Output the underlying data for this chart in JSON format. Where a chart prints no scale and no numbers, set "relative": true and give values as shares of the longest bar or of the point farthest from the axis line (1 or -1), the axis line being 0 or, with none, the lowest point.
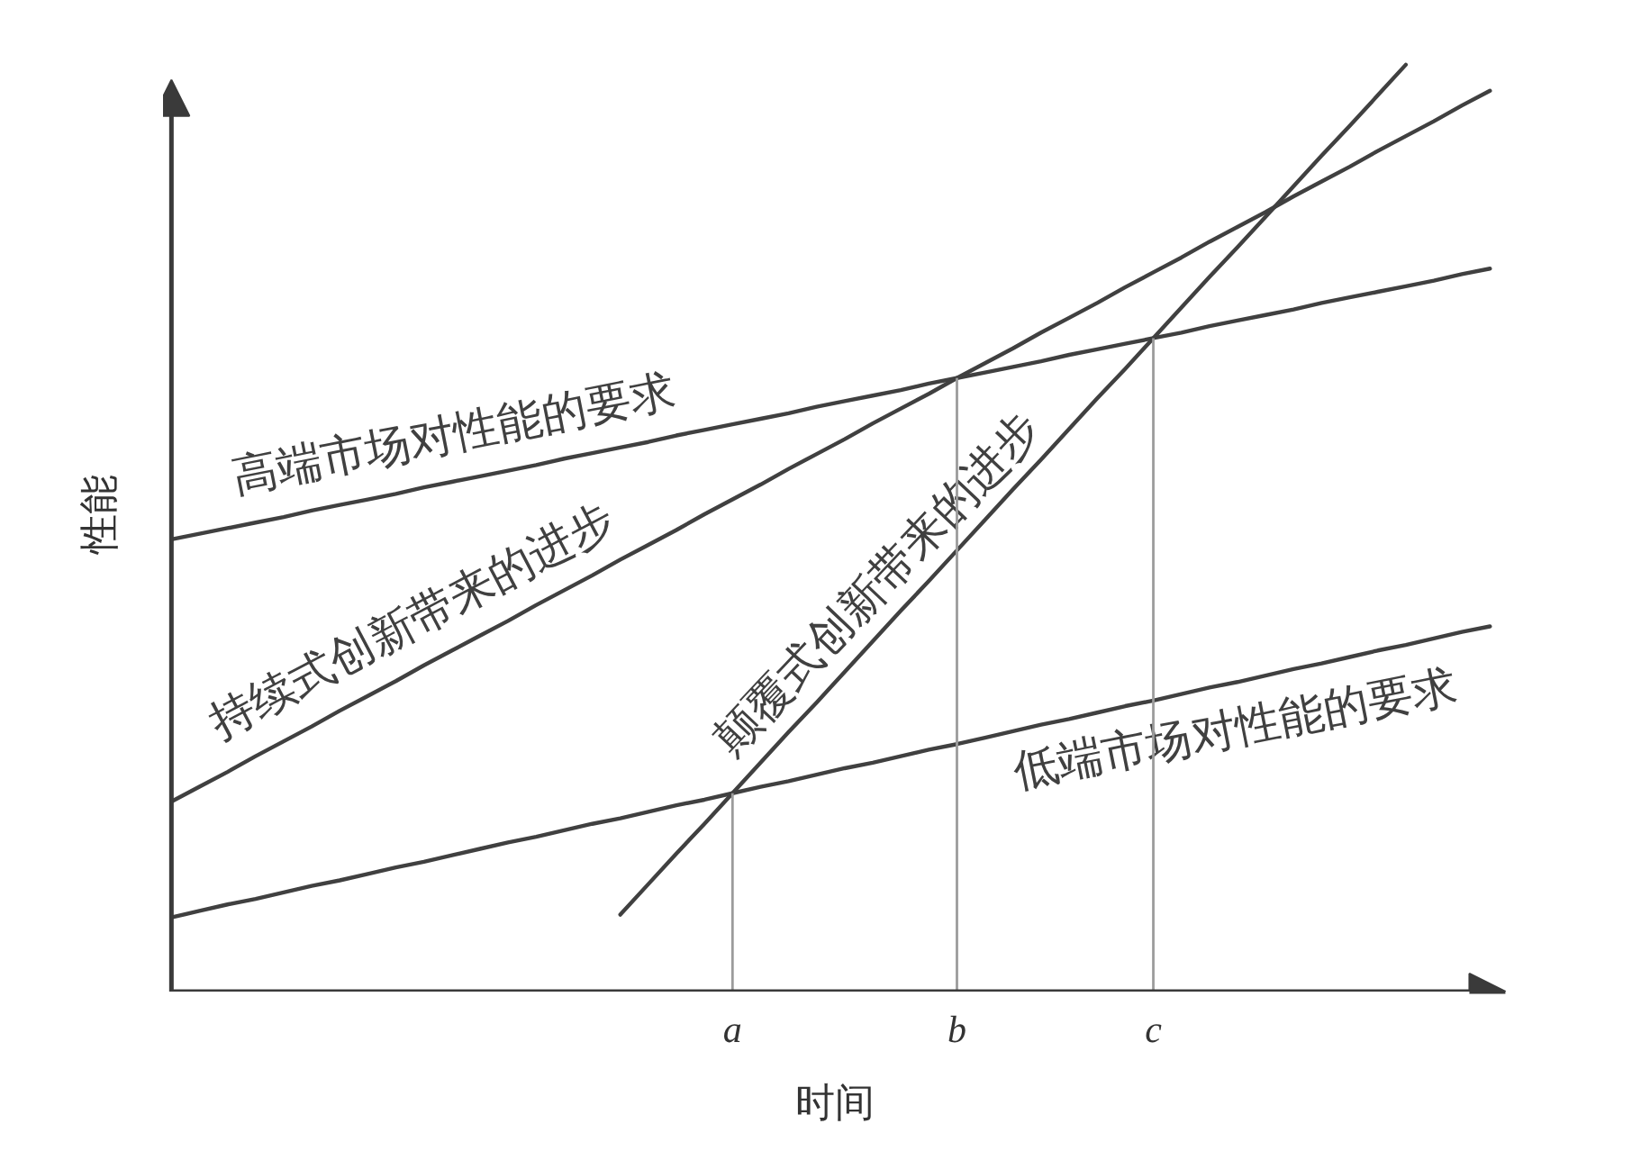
{
  "chart_data": {
    "type": "line",
    "relative": true,
    "xlabel": "时间",
    "ylabel": "性能",
    "grid": false,
    "tick_labels": "x",
    "categories": [
      null,
      null,
      null,
      null,
      null,
      null,
      null,
      null,
      null,
      null,
      null,
      null,
      null,
      null,
      null,
      null,
      null,
      null,
      null,
      null,
      "a",
      null,
      null,
      null,
      null,
      null,
      null,
      null,
      "b",
      null,
      null,
      null,
      null,
      null,
      null,
      "c",
      null,
      null,
      null,
      null,
      null,
      null,
      null,
      null,
      null,
      null,
      null,
      null
    ],
    "series": [
      {
        "name": "高端市场对性能的要求",
        "color": "#404040",
        "values": [
          0.488,
          0.494,
          0.5,
          0.506,
          0.512,
          0.519,
          0.525,
          0.531,
          0.537,
          0.544,
          0.55,
          0.556,
          0.562,
          0.568,
          0.575,
          0.581,
          0.587,
          0.593,
          0.6,
          0.606,
          0.612,
          0.618,
          0.624,
          0.631,
          0.637,
          0.643,
          0.649,
          0.656,
          0.662,
          0.668,
          0.674,
          0.68,
          0.687,
          0.693,
          0.699,
          0.705,
          0.711,
          0.718,
          0.724,
          0.73,
          0.736,
          0.743,
          0.749,
          0.755,
          0.761,
          0.767,
          0.774,
          0.78
        ]
      },
      {
        "name": "持续式创新带来的进步",
        "color": "#404040",
        "values": [
          0.205,
          0.221,
          0.237,
          0.254,
          0.27,
          0.286,
          0.303,
          0.319,
          0.335,
          0.352,
          0.368,
          0.384,
          0.4,
          0.417,
          0.433,
          0.449,
          0.466,
          0.482,
          0.498,
          0.515,
          0.531,
          0.547,
          0.564,
          0.58,
          0.596,
          0.613,
          0.629,
          0.645,
          0.662,
          0.678,
          0.694,
          0.711,
          0.727,
          0.743,
          0.76,
          0.776,
          0.792,
          0.809,
          0.825,
          0.841,
          0.858,
          0.874,
          0.89,
          0.907,
          0.923,
          0.939,
          0.956,
          0.972
        ]
      },
      {
        "name": "颠覆式创新带来的进步",
        "color": "#404040",
        "values": [
          null,
          null,
          null,
          null,
          null,
          null,
          null,
          null,
          null,
          null,
          null,
          null,
          null,
          null,
          null,
          null,
          0.083,
          0.116,
          0.149,
          0.181,
          0.214,
          0.247,
          0.28,
          0.312,
          0.345,
          0.378,
          0.411,
          0.443,
          0.476,
          0.509,
          0.542,
          0.574,
          0.607,
          0.64,
          0.672,
          0.705,
          0.738,
          0.771,
          0.803,
          0.836,
          0.869,
          0.902,
          0.934,
          0.967,
          1.0,
          null,
          null,
          null
        ]
      },
      {
        "name": "低端市场对性能的要求",
        "color": "#404040",
        "values": [
          0.08,
          0.087,
          0.094,
          0.1,
          0.107,
          0.114,
          0.12,
          0.127,
          0.134,
          0.14,
          0.147,
          0.154,
          0.161,
          0.167,
          0.174,
          0.181,
          0.187,
          0.194,
          0.201,
          0.207,
          0.214,
          0.221,
          0.227,
          0.234,
          0.241,
          0.247,
          0.254,
          0.261,
          0.267,
          0.274,
          0.281,
          0.288,
          0.294,
          0.301,
          0.308,
          0.314,
          0.321,
          0.328,
          0.334,
          0.341,
          0.348,
          0.354,
          0.361,
          0.368,
          0.374,
          0.381,
          0.388,
          0.394
        ]
      },
      {
        "type": "bar",
        "color": "#9c9c9c",
        "values": [
          null,
          null,
          null,
          null,
          null,
          null,
          null,
          null,
          null,
          null,
          null,
          null,
          null,
          null,
          null,
          null,
          null,
          null,
          null,
          null,
          0.214,
          null,
          null,
          null,
          null,
          null,
          null,
          null,
          0.662,
          null,
          null,
          null,
          null,
          null,
          null,
          0.705,
          null,
          null,
          null,
          null,
          null,
          null,
          null,
          null,
          null,
          null,
          null,
          null
        ]
      }
    ]
  }
}
